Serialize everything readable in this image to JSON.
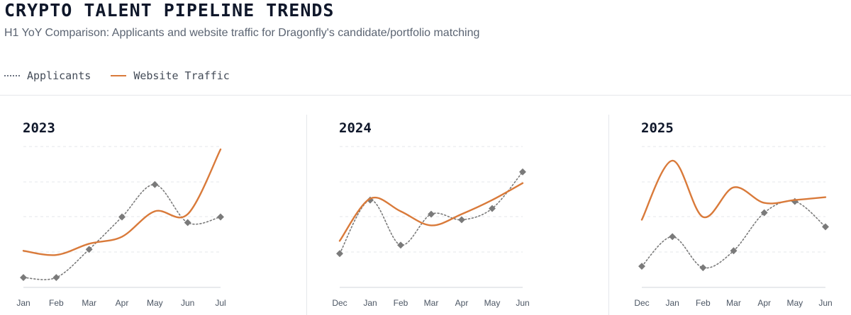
{
  "header": {
    "title": "CRYPTO TALENT PIPELINE TRENDS",
    "subtitle": "H1 YoY Comparison: Applicants and website traffic for Dragonfly's candidate/portfolio matching"
  },
  "legend": {
    "applicants_label": "Applicants",
    "traffic_label": "Website Traffic"
  },
  "colors": {
    "applicants": "#7a7a7a",
    "traffic": "#d97a3a",
    "grid": "#e5e7eb",
    "axis": "#d1d5db"
  },
  "chart_data": [
    {
      "type": "line",
      "title": "2023",
      "categories": [
        "Jan",
        "Feb",
        "Mar",
        "Apr",
        "May",
        "Jun",
        "Jul"
      ],
      "ylim": [
        0,
        100
      ],
      "grid": true,
      "series": [
        {
          "name": "Applicants",
          "style": "dotted",
          "values": [
            7,
            7,
            27,
            50,
            73,
            46,
            50
          ]
        },
        {
          "name": "Website Traffic",
          "style": "solid",
          "values": [
            26,
            23,
            31,
            36,
            54,
            52,
            98
          ]
        }
      ]
    },
    {
      "type": "line",
      "title": "2024",
      "categories": [
        "Dec",
        "Jan",
        "Feb",
        "Mar",
        "Apr",
        "May",
        "Jun"
      ],
      "ylim": [
        0,
        100
      ],
      "grid": true,
      "series": [
        {
          "name": "Applicants",
          "style": "dotted",
          "values": [
            24,
            62,
            30,
            52,
            48,
            56,
            82
          ]
        },
        {
          "name": "Website Traffic",
          "style": "solid",
          "values": [
            33,
            63,
            54,
            44,
            52,
            62,
            74
          ]
        }
      ]
    },
    {
      "type": "line",
      "title": "2025",
      "categories": [
        "Dec",
        "Jan",
        "Feb",
        "Mar",
        "Apr",
        "May",
        "Jun"
      ],
      "ylim": [
        0,
        100
      ],
      "grid": true,
      "series": [
        {
          "name": "Applicants",
          "style": "dotted",
          "values": [
            15,
            36,
            14,
            26,
            53,
            61,
            43
          ]
        },
        {
          "name": "Website Traffic",
          "style": "solid",
          "values": [
            48,
            90,
            50,
            71,
            60,
            62,
            64
          ]
        }
      ]
    }
  ]
}
